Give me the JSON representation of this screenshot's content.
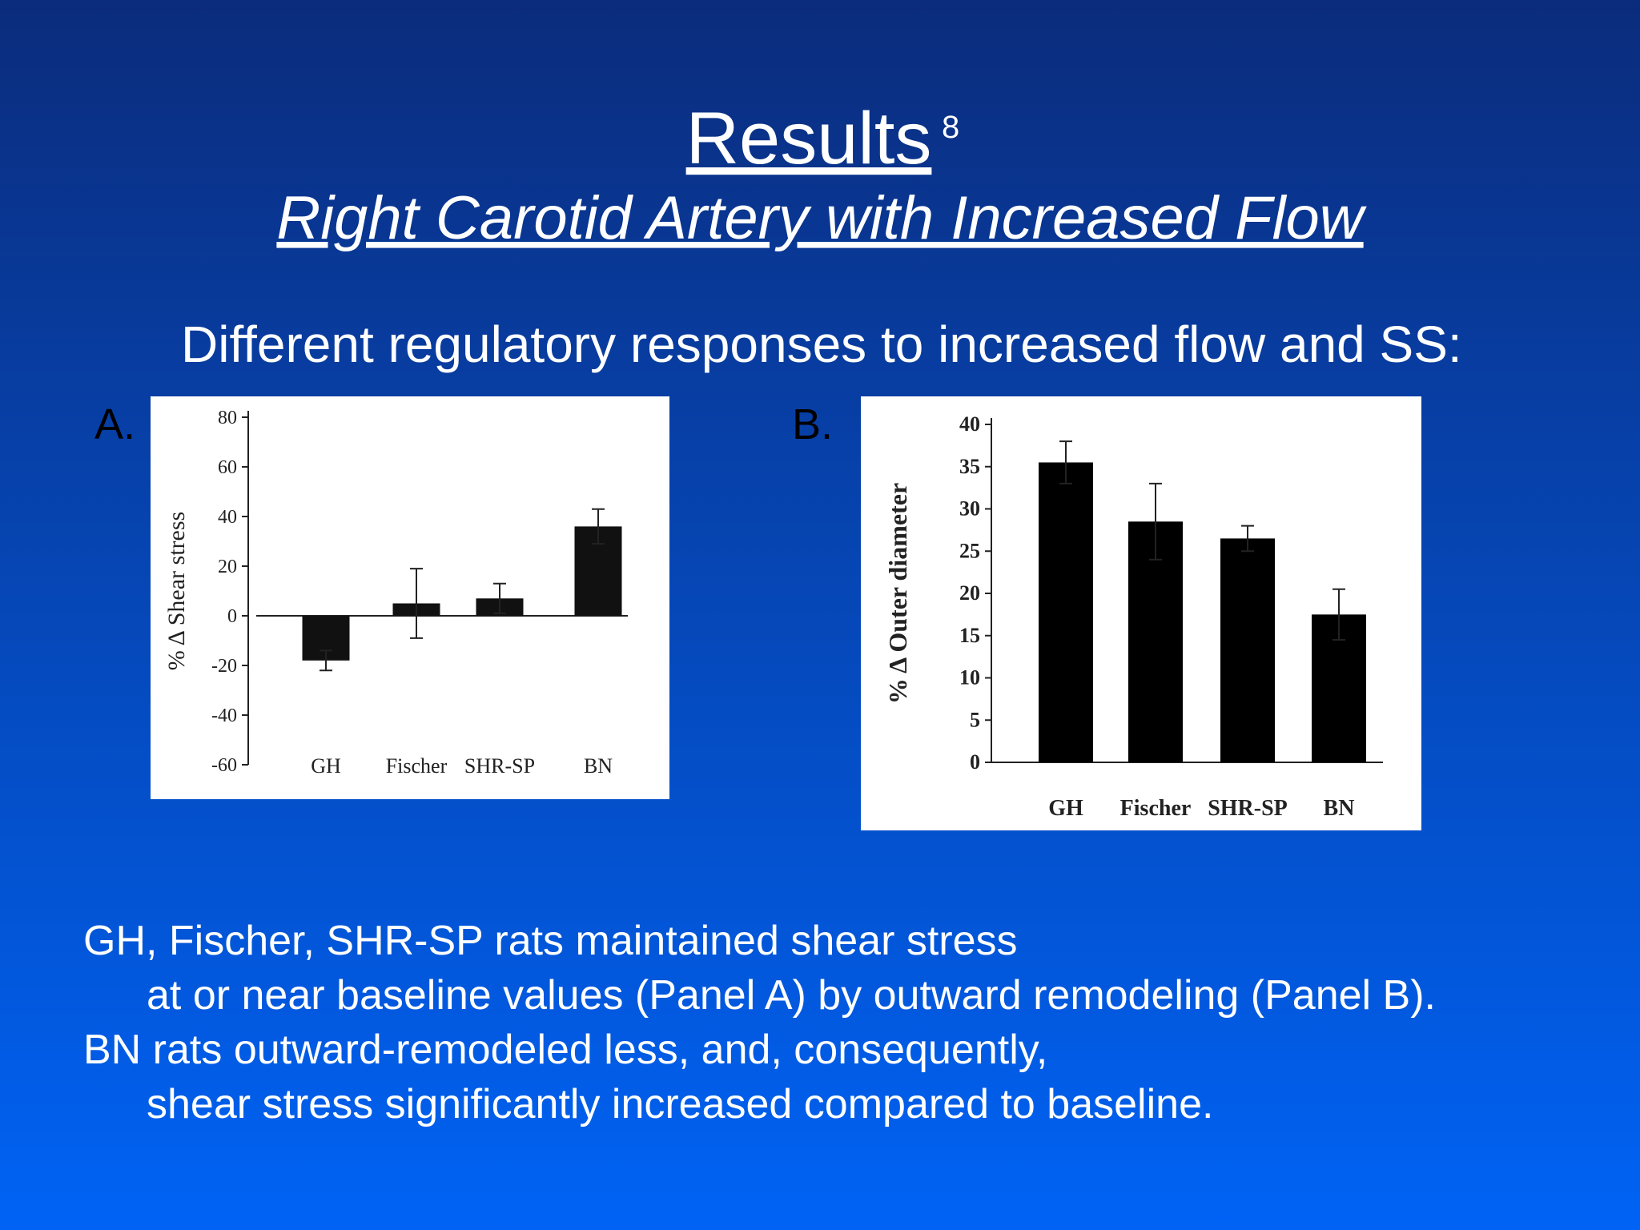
{
  "slide": {
    "title": "Results",
    "title_ref": "8",
    "subtitle": "Right Carotid Artery with Increased Flow",
    "heading": "Different regulatory responses to increased flow and SS:",
    "panel_labels": [
      "A.",
      "B."
    ],
    "body": [
      "GH, Fischer, SHR-SP rats maintained shear stress",
      "at or near baseline values (Panel A) by outward remodeling (Panel B).",
      "BN rats outward-remodeled less, and, consequently,",
      "shear stress significantly increased compared to baseline."
    ]
  },
  "chart_data": [
    {
      "type": "bar",
      "y_label": "% Δ Shear stress",
      "categories": [
        "GH",
        "Fischer",
        "SHR-SP",
        "BN"
      ],
      "values": [
        -18,
        5,
        7,
        36
      ],
      "errors": [
        4,
        14,
        6,
        7
      ],
      "color": "#111111",
      "ylim": [
        -60,
        80
      ],
      "yticks": [
        -60,
        -40,
        -20,
        0,
        20,
        40,
        60,
        80
      ]
    },
    {
      "type": "bar",
      "y_label": "% Δ Outer diameter",
      "categories": [
        "GH",
        "Fischer",
        "SHR-SP",
        "BN"
      ],
      "values": [
        35.5,
        28.5,
        26.5,
        17.5
      ],
      "errors": [
        2.5,
        4.5,
        1.5,
        3
      ],
      "color": "#000000",
      "ylim": [
        0,
        40
      ],
      "yticks": [
        0,
        5,
        10,
        15,
        20,
        25,
        30,
        35,
        40
      ]
    }
  ]
}
